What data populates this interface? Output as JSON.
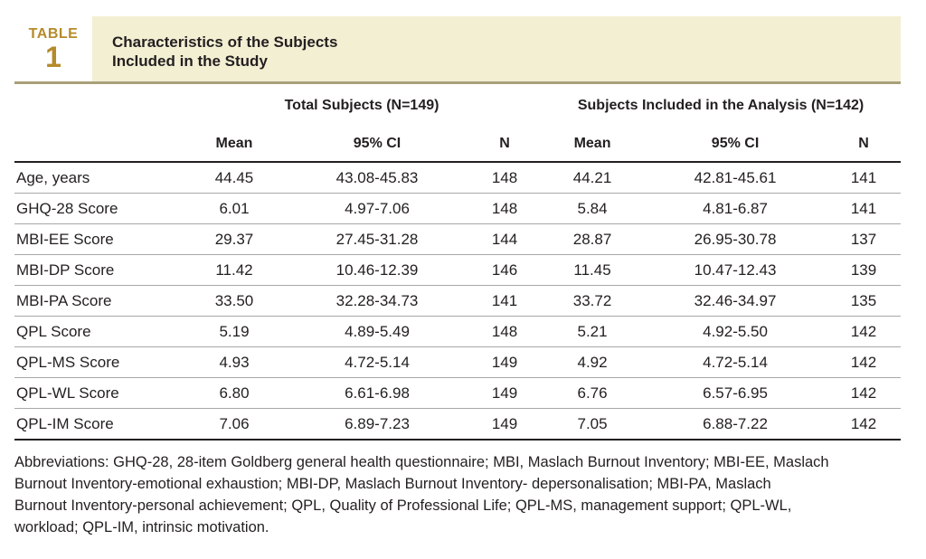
{
  "header": {
    "label_word": "TABLE",
    "label_number": "1",
    "title_line1": "Characteristics of the Subjects",
    "title_line2": "Included in the Study"
  },
  "table": {
    "group_headers": [
      "Total Subjects (N=149)",
      "Subjects Included in the Analysis (N=142)"
    ],
    "sub_headers": [
      "Mean",
      "95% CI",
      "N",
      "Mean",
      "95% CI",
      "N"
    ],
    "rows": [
      [
        "Age, years",
        "44.45",
        "43.08-45.83",
        "148",
        "44.21",
        "42.81-45.61",
        "141"
      ],
      [
        "GHQ-28 Score",
        "6.01",
        "4.97-7.06",
        "148",
        "5.84",
        "4.81-6.87",
        "141"
      ],
      [
        "MBI-EE Score",
        "29.37",
        "27.45-31.28",
        "144",
        "28.87",
        "26.95-30.78",
        "137"
      ],
      [
        "MBI-DP Score",
        "11.42",
        "10.46-12.39",
        "146",
        "11.45",
        "10.47-12.43",
        "139"
      ],
      [
        "MBI-PA Score",
        "33.50",
        "32.28-34.73",
        "141",
        "33.72",
        "32.46-34.97",
        "135"
      ],
      [
        "QPL Score",
        "5.19",
        "4.89-5.49",
        "148",
        "5.21",
        "4.92-5.50",
        "142"
      ],
      [
        "QPL-MS Score",
        "4.93",
        "4.72-5.14",
        "149",
        "4.92",
        "4.72-5.14",
        "142"
      ],
      [
        "QPL-WL Score",
        "6.80",
        "6.61-6.98",
        "149",
        "6.76",
        "6.57-6.95",
        "142"
      ],
      [
        "QPL-IM Score",
        "7.06",
        "6.89-7.23",
        "149",
        "7.05",
        "6.88-7.22",
        "142"
      ]
    ]
  },
  "footnote": {
    "lines": [
      "Abbreviations: GHQ-28, 28-item Goldberg general health questionnaire; MBI, Maslach Burnout Inventory; MBI-EE, Maslach",
      "Burnout Inventory-emotional exhaustion; MBI-DP, Maslach Burnout Inventory- depersonalisation; MBI-PA, Maslach",
      "Burnout Inventory-personal achievement; QPL, Quality of Professional Life; QPL-MS, management support; QPL-WL,",
      "workload; QPL-IM, intrinsic motivation."
    ]
  },
  "colors": {
    "accent": "#b58a2a",
    "title_band": "#f3efd3",
    "rule": "#a9a07a",
    "text": "#231f20"
  }
}
